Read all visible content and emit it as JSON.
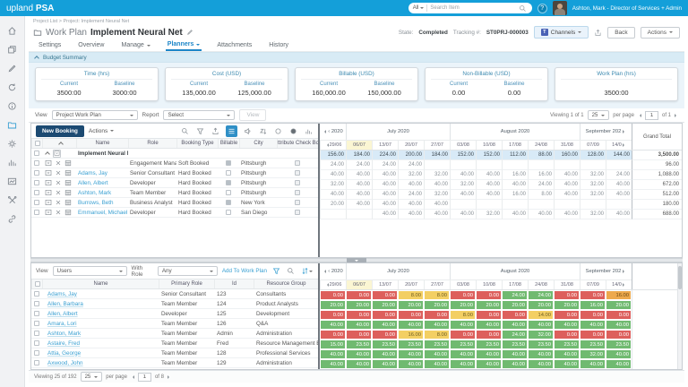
{
  "colors": {
    "topbar": "#149fd9",
    "accent": "#2e8fc0",
    "link": "#3aa0d2",
    "active_tab": "#1d86c8",
    "primary_button": "#1c4a72",
    "summary_cell": "#d8eaf7",
    "highlight_col": "#fbf6d3",
    "cell_red": "#dd5f5c",
    "cell_green": "#70ba70",
    "cell_yellow": "#f3cf63",
    "cell_orange": "#eda94d"
  },
  "topbar": {
    "logo_normal": "upland",
    "logo_bold": "PSA",
    "search_scope": "All",
    "search_placeholder": "Search Item",
    "help_glyph": "?",
    "user_name": "Ashton, Mark - Director of Services + Admin"
  },
  "sidebar": {
    "icons": [
      {
        "name": "home"
      },
      {
        "name": "layers"
      },
      {
        "name": "pencil"
      },
      {
        "name": "sync"
      },
      {
        "name": "info"
      },
      {
        "name": "folder",
        "active": true
      },
      {
        "name": "gear"
      },
      {
        "name": "bar-chart"
      },
      {
        "name": "chart-board"
      },
      {
        "name": "tools"
      },
      {
        "name": "link"
      }
    ]
  },
  "header": {
    "breadcrumb": "Project List > Project: Implement Neural Net",
    "doc_type": "Work Plan",
    "title": "Implement Neural Net",
    "state_label": "State:",
    "state_value": "Completed",
    "tracking_label": "Tracking #:",
    "tracking_value": "ST0PRJ-000003",
    "channels_label": "Channels",
    "teams_glyph": "T",
    "back_label": "Back",
    "actions_label": "Actions"
  },
  "tabs": [
    {
      "label": "Settings"
    },
    {
      "label": "Overview"
    },
    {
      "label": "Manage",
      "dropdown": true
    },
    {
      "label": "Planners",
      "dropdown": true,
      "active": true
    },
    {
      "label": "Attachments"
    },
    {
      "label": "History"
    }
  ],
  "budget": {
    "title": "Budget Summary",
    "cards": [
      {
        "title": "Time (hrs)",
        "items": [
          {
            "label": "Current",
            "value": "3500:00"
          },
          {
            "label": "Baseline",
            "value": "3000:00"
          }
        ]
      },
      {
        "title": "Cost (USD)",
        "items": [
          {
            "label": "Current",
            "value": "135,000.00"
          },
          {
            "label": "Baseline",
            "value": "125,000.00"
          }
        ]
      },
      {
        "title": "Billable (USD)",
        "items": [
          {
            "label": "Current",
            "value": "160,000.00"
          },
          {
            "label": "Baseline",
            "value": "150,000.00"
          }
        ]
      },
      {
        "title": "Non-Billable (USD)",
        "items": [
          {
            "label": "Current",
            "value": "0.00"
          },
          {
            "label": "Baseline",
            "value": "0.00"
          }
        ]
      },
      {
        "title": "Work Plan (hrs)",
        "items": [
          {
            "label": "",
            "value": "3500:00"
          }
        ]
      }
    ]
  },
  "filter_bar": {
    "view_label": "View",
    "view_value": "Project Work Plan",
    "report_label": "Report",
    "report_value": "Select",
    "go_label": "View",
    "viewing": "Viewing 1 of 1",
    "per_page_value": "25",
    "per_page_label": "per page",
    "page_value": "1",
    "page_of": "of 1"
  },
  "workplan": {
    "new_booking_label": "New Booking",
    "actions_label": "Actions",
    "toolbar_icons": [
      {
        "name": "search"
      },
      {
        "name": "filter"
      },
      {
        "name": "export"
      },
      {
        "name": "list-view",
        "active": true
      },
      {
        "name": "announce"
      },
      {
        "name": "sort"
      },
      {
        "name": "status-circle"
      },
      {
        "name": "record"
      },
      {
        "name": "chart"
      }
    ],
    "columns": [
      "Name",
      "Role",
      "Booking Type",
      "Billable",
      "City",
      "Attribute Check Box"
    ],
    "year_label": "‹ 2020",
    "months": [
      {
        "label": "July 2020",
        "span": 4
      },
      {
        "label": "August 2020",
        "span": 5
      },
      {
        "label": "September 202",
        "span": 2,
        "next": true
      }
    ],
    "dates": [
      "29/06",
      "06/07",
      "13/07",
      "20/07",
      "27/07",
      "03/08",
      "10/08",
      "17/08",
      "24/08",
      "31/08",
      "07/09",
      "14/0"
    ],
    "highlight_date_index": 1,
    "grand_total_label": "Grand Total",
    "summary_row": {
      "name": "Implement Neural Net",
      "values": [
        "156.00",
        "184.00",
        "224.00",
        "200.00",
        "184.00",
        "152.00",
        "152.00",
        "112.00",
        "88.00",
        "160.00",
        "128.00",
        "144.00"
      ],
      "total": "3,500.00"
    },
    "rows": [
      {
        "name": "",
        "role": "Engagement Manager",
        "booking_type": "Soft Booked",
        "billable": true,
        "city": "Pittsburgh",
        "values": [
          "24.00",
          "24.00",
          "24.00",
          "24.00",
          "",
          "",
          "",
          "",
          "",
          "",
          "",
          ""
        ],
        "total": "96.00"
      },
      {
        "name": "Adams, Jay",
        "role": "Senior Consultant",
        "booking_type": "Hard Booked",
        "billable": false,
        "city": "Pittsburgh",
        "values": [
          "40.00",
          "40.00",
          "40.00",
          "32.00",
          "32.00",
          "40.00",
          "40.00",
          "16.00",
          "16.00",
          "40.00",
          "32.00",
          "24.00"
        ],
        "total": "1,088.00"
      },
      {
        "name": "Allen, Albert",
        "role": "Developer",
        "booking_type": "Hard Booked",
        "billable": true,
        "city": "Pittsburgh",
        "values": [
          "32.00",
          "40.00",
          "40.00",
          "40.00",
          "40.00",
          "32.00",
          "40.00",
          "40.00",
          "24.00",
          "40.00",
          "32.00",
          "40.00"
        ],
        "total": "672.00"
      },
      {
        "name": "Ashton, Mark",
        "role": "Team Member",
        "booking_type": "Hard Booked",
        "billable": false,
        "city": "Pittsburgh",
        "values": [
          "40.00",
          "40.00",
          "40.00",
          "24.00",
          "32.00",
          "40.00",
          "40.00",
          "16.00",
          "8.00",
          "40.00",
          "32.00",
          "40.00"
        ],
        "total": "512.00"
      },
      {
        "name": "Burrows, Beth",
        "role": "Business Analyst",
        "booking_type": "Hard Booked",
        "billable": true,
        "city": "New York",
        "values": [
          "20.00",
          "40.00",
          "40.00",
          "40.00",
          "40.00",
          "",
          "",
          "",
          "",
          "",
          "",
          ""
        ],
        "total": "180.00"
      },
      {
        "name": "Emmanuel, Michael",
        "role": "Developer",
        "booking_type": "Hard Booked",
        "billable": false,
        "city": "San Diego",
        "values": [
          "",
          "",
          "40.00",
          "40.00",
          "40.00",
          "40.00",
          "32.00",
          "40.00",
          "40.00",
          "40.00",
          "32.00",
          "40.00"
        ],
        "total": "688.00"
      }
    ]
  },
  "resources": {
    "view_label": "View",
    "view_value": "Users",
    "with_role_label": "With Role",
    "with_role_value": "Any",
    "add_label": "Add To Work Plan",
    "columns": [
      "Name",
      "Primary Role",
      "Id",
      "Resource Group"
    ],
    "rows": [
      {
        "name": "Adams, Jay",
        "role": "Senior Consultant",
        "id": "123",
        "group": "Consultants",
        "cells": [
          {
            "v": "0.00",
            "s": "red"
          },
          {
            "v": "0.00",
            "s": "red"
          },
          {
            "v": "0.00",
            "s": "red"
          },
          {
            "v": "8.00",
            "s": "yellow"
          },
          {
            "v": "8.00",
            "s": "yellow"
          },
          {
            "v": "0.00",
            "s": "red"
          },
          {
            "v": "0.00",
            "s": "red"
          },
          {
            "v": "24.00",
            "s": "green"
          },
          {
            "v": "24.00",
            "s": "green"
          },
          {
            "v": "0.00",
            "s": "red"
          },
          {
            "v": "0.00",
            "s": "red"
          },
          {
            "v": "16.00",
            "s": "orange"
          }
        ]
      },
      {
        "name": "Allen, Barbara",
        "role": "Team Member",
        "id": "124",
        "group": "Product Analysts",
        "cells": [
          {
            "v": "20.00",
            "s": "green"
          },
          {
            "v": "20.00",
            "s": "green"
          },
          {
            "v": "20.00",
            "s": "green"
          },
          {
            "v": "20.00",
            "s": "green"
          },
          {
            "v": "20.00",
            "s": "green"
          },
          {
            "v": "20.00",
            "s": "green"
          },
          {
            "v": "20.00",
            "s": "green"
          },
          {
            "v": "20.00",
            "s": "green"
          },
          {
            "v": "20.00",
            "s": "green"
          },
          {
            "v": "20.00",
            "s": "green"
          },
          {
            "v": "16.00",
            "s": "green"
          },
          {
            "v": "20.00",
            "s": "green"
          }
        ]
      },
      {
        "name": "Allen, Albert",
        "role": "Developer",
        "id": "125",
        "group": "Development",
        "cells": [
          {
            "v": "0.00",
            "s": "red"
          },
          {
            "v": "0.00",
            "s": "red"
          },
          {
            "v": "0.00",
            "s": "red"
          },
          {
            "v": "0.00",
            "s": "red"
          },
          {
            "v": "0.00",
            "s": "red"
          },
          {
            "v": "8.00",
            "s": "yellow"
          },
          {
            "v": "0.00",
            "s": "red"
          },
          {
            "v": "0.00",
            "s": "red"
          },
          {
            "v": "14.00",
            "s": "yellow"
          },
          {
            "v": "0.00",
            "s": "red"
          },
          {
            "v": "0.00",
            "s": "red"
          },
          {
            "v": "0.00",
            "s": "red"
          }
        ]
      },
      {
        "name": "Amara, Lori",
        "role": "Team Member",
        "id": "126",
        "group": "Q&A",
        "cells": [
          {
            "v": "40.00",
            "s": "green"
          },
          {
            "v": "40.00",
            "s": "green"
          },
          {
            "v": "40.00",
            "s": "green"
          },
          {
            "v": "40.00",
            "s": "green"
          },
          {
            "v": "40.00",
            "s": "green"
          },
          {
            "v": "40.00",
            "s": "green"
          },
          {
            "v": "40.00",
            "s": "green"
          },
          {
            "v": "40.00",
            "s": "green"
          },
          {
            "v": "40.00",
            "s": "green"
          },
          {
            "v": "40.00",
            "s": "green"
          },
          {
            "v": "40.00",
            "s": "green"
          },
          {
            "v": "40.00",
            "s": "green"
          }
        ]
      },
      {
        "name": "Ashton, Mark",
        "role": "Team Member",
        "id": "Admin",
        "group": "Administration",
        "cells": [
          {
            "v": "0.00",
            "s": "red"
          },
          {
            "v": "0.00",
            "s": "red"
          },
          {
            "v": "0.00",
            "s": "red"
          },
          {
            "v": "16.00",
            "s": "yellow"
          },
          {
            "v": "8.00",
            "s": "yellow"
          },
          {
            "v": "0.00",
            "s": "red"
          },
          {
            "v": "0.00",
            "s": "red"
          },
          {
            "v": "24.00",
            "s": "green"
          },
          {
            "v": "32.00",
            "s": "green"
          },
          {
            "v": "0.00",
            "s": "red"
          },
          {
            "v": "0.00",
            "s": "red"
          },
          {
            "v": "0.00",
            "s": "red"
          }
        ]
      },
      {
        "name": "Astaire, Fred",
        "role": "Team Member",
        "id": "Fred",
        "group": "Resource Management E",
        "cells": [
          {
            "v": "15.00",
            "s": "green"
          },
          {
            "v": "23.50",
            "s": "green"
          },
          {
            "v": "23.50",
            "s": "green"
          },
          {
            "v": "23.50",
            "s": "green"
          },
          {
            "v": "23.50",
            "s": "green"
          },
          {
            "v": "23.50",
            "s": "green"
          },
          {
            "v": "23.50",
            "s": "green"
          },
          {
            "v": "23.50",
            "s": "green"
          },
          {
            "v": "23.50",
            "s": "green"
          },
          {
            "v": "23.50",
            "s": "green"
          },
          {
            "v": "23.50",
            "s": "green"
          },
          {
            "v": "23.50",
            "s": "green"
          }
        ]
      },
      {
        "name": "Attia, George",
        "role": "Team Member",
        "id": "128",
        "group": "Professional Services",
        "cells": [
          {
            "v": "40.00",
            "s": "green"
          },
          {
            "v": "40.00",
            "s": "green"
          },
          {
            "v": "40.00",
            "s": "green"
          },
          {
            "v": "40.00",
            "s": "green"
          },
          {
            "v": "40.00",
            "s": "green"
          },
          {
            "v": "40.00",
            "s": "green"
          },
          {
            "v": "40.00",
            "s": "green"
          },
          {
            "v": "40.00",
            "s": "green"
          },
          {
            "v": "40.00",
            "s": "green"
          },
          {
            "v": "40.00",
            "s": "green"
          },
          {
            "v": "32.00",
            "s": "green"
          },
          {
            "v": "40.00",
            "s": "green"
          }
        ]
      },
      {
        "name": "Axwood, John",
        "role": "Team Member",
        "id": "129",
        "group": "Administration",
        "cells": [
          {
            "v": "40.00",
            "s": "green"
          },
          {
            "v": "40.00",
            "s": "green"
          },
          {
            "v": "40.00",
            "s": "green"
          },
          {
            "v": "40.00",
            "s": "green"
          },
          {
            "v": "40.00",
            "s": "green"
          },
          {
            "v": "40.00",
            "s": "green"
          },
          {
            "v": "40.00",
            "s": "green"
          },
          {
            "v": "40.00",
            "s": "green"
          },
          {
            "v": "40.00",
            "s": "green"
          },
          {
            "v": "40.00",
            "s": "green"
          },
          {
            "v": "40.00",
            "s": "green"
          },
          {
            "v": "40.00",
            "s": "green"
          }
        ]
      }
    ],
    "viewing": "Viewing 25 of 192",
    "per_page_value": "25",
    "per_page_label": "per page",
    "page_value": "1",
    "page_of": "of 8"
  }
}
